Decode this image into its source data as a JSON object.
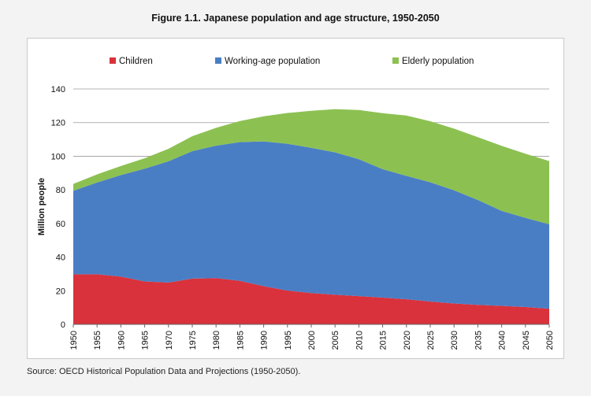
{
  "figure": {
    "title": "Figure 1.1. Japanese population and age structure, 1950-2050",
    "source": "Source: OECD Historical Population Data and Projections (1950-2050)."
  },
  "colors": {
    "children": "#d9323c",
    "working": "#4a7ec4",
    "elderly": "#8cc152",
    "grid": "#9a9a9a"
  },
  "chart_data": {
    "type": "area",
    "stacked": true,
    "title": "",
    "xlabel": "",
    "ylabel": "Million people",
    "x": [
      1950,
      1955,
      1960,
      1965,
      1970,
      1975,
      1980,
      1985,
      1990,
      1995,
      2000,
      2005,
      2010,
      2015,
      2020,
      2025,
      2030,
      2035,
      2040,
      2045,
      2050
    ],
    "ylim": [
      0,
      140
    ],
    "yticks": [
      0,
      20,
      40,
      60,
      80,
      100,
      120,
      140
    ],
    "grid": true,
    "legend_position": "top",
    "series": [
      {
        "name": "Children",
        "color": "#d9323c",
        "values": [
          29.8,
          29.8,
          28.4,
          25.5,
          24.9,
          27.2,
          27.5,
          25.9,
          22.7,
          20.1,
          18.6,
          17.6,
          16.8,
          15.9,
          14.9,
          13.6,
          12.4,
          11.6,
          11.0,
          10.3,
          9.3
        ]
      },
      {
        "name": "Working-age population",
        "color": "#4a7ec4",
        "values": [
          49.6,
          54.6,
          60.4,
          67.1,
          72.1,
          75.8,
          78.8,
          82.5,
          86.1,
          87.3,
          86.4,
          84.7,
          81.4,
          76.4,
          73.4,
          70.9,
          67.3,
          62.4,
          56.5,
          53.0,
          50.2
        ]
      },
      {
        "name": "Elderly population",
        "color": "#8cc152",
        "values": [
          4.1,
          4.8,
          5.4,
          6.2,
          7.4,
          8.9,
          10.6,
          12.5,
          14.9,
          18.3,
          22.0,
          25.7,
          29.3,
          33.3,
          35.9,
          36.3,
          36.7,
          37.3,
          38.7,
          38.2,
          37.6
        ]
      }
    ]
  }
}
